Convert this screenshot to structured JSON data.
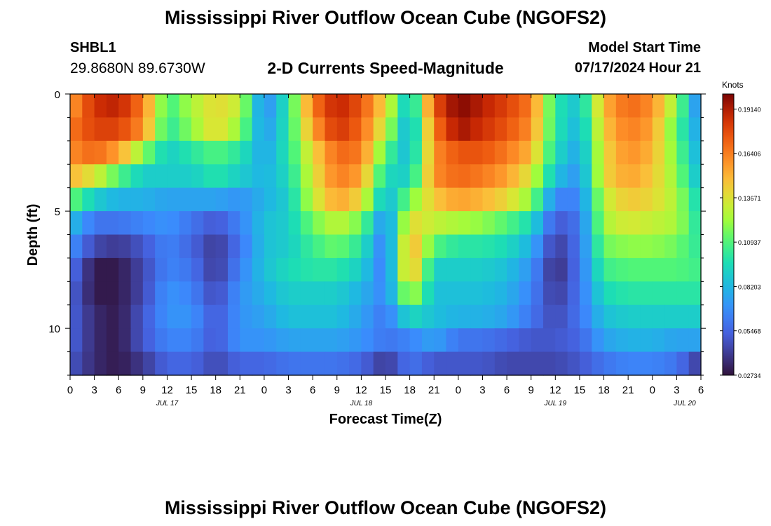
{
  "header": {
    "title": "Mississippi River Outflow Ocean Cube (NGOFS2)",
    "station": "SHBL1",
    "coords": "29.8680N  89.6730W",
    "plot_title": "2-D Currents Speed-Magnitude",
    "model_start_label": "Model Start Time",
    "model_start_value": "07/17/2024 Hour 21"
  },
  "footer": {
    "title": "Mississippi River Outflow Ocean Cube (NGOFS2)"
  },
  "chart_data": {
    "type": "heatmap",
    "xlabel": "Forecast Time(Z)",
    "ylabel": "Depth (ft)",
    "x_range_hours": [
      0,
      78
    ],
    "ylim": [
      0,
      12
    ],
    "x_ticks": [
      {
        "h": 0,
        "label": "0"
      },
      {
        "h": 3,
        "label": "3"
      },
      {
        "h": 6,
        "label": "6"
      },
      {
        "h": 9,
        "label": "9"
      },
      {
        "h": 12,
        "label": "12"
      },
      {
        "h": 15,
        "label": "15"
      },
      {
        "h": 18,
        "label": "18"
      },
      {
        "h": 21,
        "label": "21"
      },
      {
        "h": 24,
        "label": "0"
      },
      {
        "h": 27,
        "label": "3"
      },
      {
        "h": 30,
        "label": "6"
      },
      {
        "h": 33,
        "label": "9"
      },
      {
        "h": 36,
        "label": "12"
      },
      {
        "h": 39,
        "label": "15"
      },
      {
        "h": 42,
        "label": "18"
      },
      {
        "h": 45,
        "label": "21"
      },
      {
        "h": 48,
        "label": "0"
      },
      {
        "h": 51,
        "label": "3"
      },
      {
        "h": 54,
        "label": "6"
      },
      {
        "h": 57,
        "label": "9"
      },
      {
        "h": 60,
        "label": "12"
      },
      {
        "h": 63,
        "label": "15"
      },
      {
        "h": 66,
        "label": "18"
      },
      {
        "h": 69,
        "label": "21"
      },
      {
        "h": 72,
        "label": "0"
      },
      {
        "h": 75,
        "label": "3"
      },
      {
        "h": 78,
        "label": "6"
      }
    ],
    "date_labels": [
      {
        "h": 12,
        "label": "JUL 17"
      },
      {
        "h": 36,
        "label": "JUL 18"
      },
      {
        "h": 60,
        "label": "JUL 19"
      },
      {
        "h": 76,
        "label": "JUL 20"
      }
    ],
    "y_ticks": [
      0,
      5,
      10
    ],
    "colorbar": {
      "title": "Knots",
      "min": 0.0273,
      "max": 0.2007,
      "ticks": [
        "0.02734",
        "0.05468",
        "0.08203",
        "0.10937",
        "0.13671",
        "0.16406",
        "0.19140"
      ],
      "tick_values": [
        0.02734,
        0.05468,
        0.08203,
        0.10937,
        0.13671,
        0.16406,
        0.1914
      ]
    },
    "depth_layers": [
      0.5,
      1.5,
      2.5,
      3.5,
      4.5,
      5.5,
      6.5,
      7.5,
      8.5,
      9.5,
      10.5,
      11.5
    ],
    "time_hours": [
      0,
      3,
      6,
      9,
      12,
      15,
      18,
      21,
      24,
      27,
      30,
      33,
      36,
      39,
      42,
      45,
      48,
      51,
      54,
      57,
      60,
      63,
      66,
      69,
      72,
      75,
      78
    ],
    "values": [
      [
        0.155,
        0.185,
        0.19,
        0.165,
        0.105,
        0.125,
        0.14,
        0.13,
        0.065,
        0.1,
        0.165,
        0.19,
        0.175,
        0.14,
        0.08,
        0.175,
        0.2,
        0.19,
        0.18,
        0.165,
        0.1,
        0.085,
        0.15,
        0.17,
        0.16,
        0.12,
        0.06
      ],
      [
        0.165,
        0.18,
        0.18,
        0.16,
        0.1,
        0.12,
        0.14,
        0.12,
        0.07,
        0.1,
        0.155,
        0.185,
        0.17,
        0.13,
        0.075,
        0.165,
        0.195,
        0.185,
        0.175,
        0.16,
        0.1,
        0.08,
        0.145,
        0.165,
        0.155,
        0.11,
        0.07
      ],
      [
        0.16,
        0.17,
        0.155,
        0.12,
        0.09,
        0.1,
        0.11,
        0.1,
        0.075,
        0.1,
        0.14,
        0.17,
        0.165,
        0.11,
        0.08,
        0.16,
        0.175,
        0.175,
        0.165,
        0.15,
        0.095,
        0.075,
        0.14,
        0.16,
        0.15,
        0.115,
        0.075
      ],
      [
        0.15,
        0.135,
        0.11,
        0.09,
        0.09,
        0.09,
        0.1,
        0.09,
        0.08,
        0.095,
        0.135,
        0.165,
        0.155,
        0.095,
        0.09,
        0.16,
        0.17,
        0.165,
        0.155,
        0.135,
        0.085,
        0.07,
        0.14,
        0.155,
        0.145,
        0.12,
        0.08
      ],
      [
        0.115,
        0.09,
        0.08,
        0.08,
        0.075,
        0.075,
        0.075,
        0.07,
        0.08,
        0.09,
        0.13,
        0.155,
        0.14,
        0.08,
        0.115,
        0.145,
        0.155,
        0.15,
        0.14,
        0.12,
        0.065,
        0.065,
        0.13,
        0.145,
        0.14,
        0.125,
        0.09
      ],
      [
        0.085,
        0.06,
        0.06,
        0.065,
        0.07,
        0.06,
        0.05,
        0.065,
        0.085,
        0.09,
        0.115,
        0.13,
        0.115,
        0.065,
        0.14,
        0.13,
        0.125,
        0.12,
        0.11,
        0.095,
        0.05,
        0.06,
        0.125,
        0.135,
        0.13,
        0.125,
        0.095
      ],
      [
        0.07,
        0.045,
        0.04,
        0.05,
        0.065,
        0.055,
        0.04,
        0.06,
        0.085,
        0.09,
        0.105,
        0.115,
        0.1,
        0.06,
        0.155,
        0.11,
        0.1,
        0.1,
        0.095,
        0.08,
        0.04,
        0.06,
        0.115,
        0.12,
        0.12,
        0.115,
        0.1
      ],
      [
        0.06,
        0.03,
        0.03,
        0.045,
        0.065,
        0.06,
        0.04,
        0.065,
        0.085,
        0.095,
        0.1,
        0.1,
        0.09,
        0.06,
        0.155,
        0.09,
        0.09,
        0.09,
        0.085,
        0.07,
        0.035,
        0.06,
        0.105,
        0.11,
        0.11,
        0.11,
        0.105
      ],
      [
        0.055,
        0.03,
        0.03,
        0.045,
        0.07,
        0.065,
        0.045,
        0.07,
        0.08,
        0.09,
        0.09,
        0.09,
        0.08,
        0.065,
        0.13,
        0.085,
        0.085,
        0.085,
        0.08,
        0.065,
        0.04,
        0.06,
        0.095,
        0.1,
        0.1,
        0.1,
        0.1
      ],
      [
        0.055,
        0.035,
        0.03,
        0.05,
        0.07,
        0.07,
        0.05,
        0.07,
        0.075,
        0.085,
        0.085,
        0.085,
        0.075,
        0.06,
        0.095,
        0.085,
        0.08,
        0.08,
        0.075,
        0.06,
        0.045,
        0.06,
        0.085,
        0.09,
        0.09,
        0.09,
        0.09
      ],
      [
        0.055,
        0.035,
        0.03,
        0.05,
        0.065,
        0.065,
        0.05,
        0.07,
        0.07,
        0.075,
        0.075,
        0.075,
        0.07,
        0.06,
        0.065,
        0.075,
        0.06,
        0.06,
        0.055,
        0.05,
        0.05,
        0.055,
        0.075,
        0.08,
        0.08,
        0.075,
        0.075
      ],
      [
        0.05,
        0.035,
        0.03,
        0.04,
        0.055,
        0.055,
        0.045,
        0.055,
        0.055,
        0.06,
        0.06,
        0.06,
        0.055,
        0.04,
        0.06,
        0.05,
        0.05,
        0.05,
        0.045,
        0.045,
        0.045,
        0.05,
        0.06,
        0.065,
        0.065,
        0.06,
        0.04
      ]
    ]
  }
}
